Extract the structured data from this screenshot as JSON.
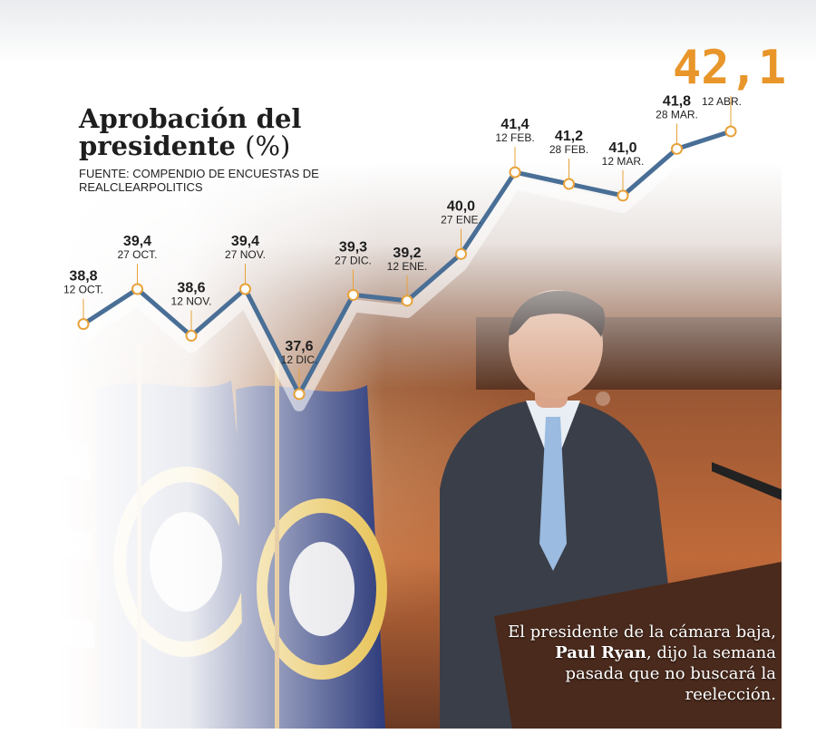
{
  "title": "Aprobación del presidente",
  "title_unit": "(%)",
  "source": "FUENTE: COMPENDIO DE ENCUESTAS DE REALCLEARPOLITICS",
  "caption": {
    "before": "El presidente de la cámara baja, ",
    "name": "Paul Ryan",
    "after": ", dijo la semana pasada que no buscará la reelección."
  },
  "colors": {
    "line": "#4a6f96",
    "marker_stroke": "#e8a23a",
    "marker_fill": "#ffffff",
    "highlight": "#e8962a"
  },
  "chart_data": {
    "type": "line",
    "title": "Aprobación del presidente (%)",
    "x": [
      "12 OCT.",
      "27 OCT.",
      "12 NOV.",
      "27 NOV.",
      "12 DIC.",
      "27 DIC.",
      "12 ENE.",
      "27 ENE.",
      "12 FEB.",
      "28 FEB.",
      "12 MAR.",
      "28 MAR.",
      "12 ABR."
    ],
    "x_labels": [
      "12 OCT.",
      "27 OCT.",
      "12 NOV.",
      "27 NOV.",
      "12 DIC.",
      "27 DIC.",
      "12 ENE.",
      "27 ENE.",
      "12 FEB.",
      "28 FEB.",
      "12 MAR.",
      "28 MAR.",
      "12 ABR."
    ],
    "value_labels": [
      "38,8",
      "39,4",
      "38,6",
      "39,4",
      "37,6",
      "39,3",
      "39,2",
      "40,0",
      "41,4",
      "41,2",
      "41,0",
      "41,8",
      "42,1"
    ],
    "series": [
      {
        "values": [
          38.8,
          39.4,
          38.6,
          39.4,
          37.6,
          39.3,
          39.2,
          40.0,
          41.4,
          41.2,
          41.0,
          41.8,
          42.1
        ]
      }
    ],
    "highlight_last": true,
    "grid": false,
    "legend": "none"
  }
}
